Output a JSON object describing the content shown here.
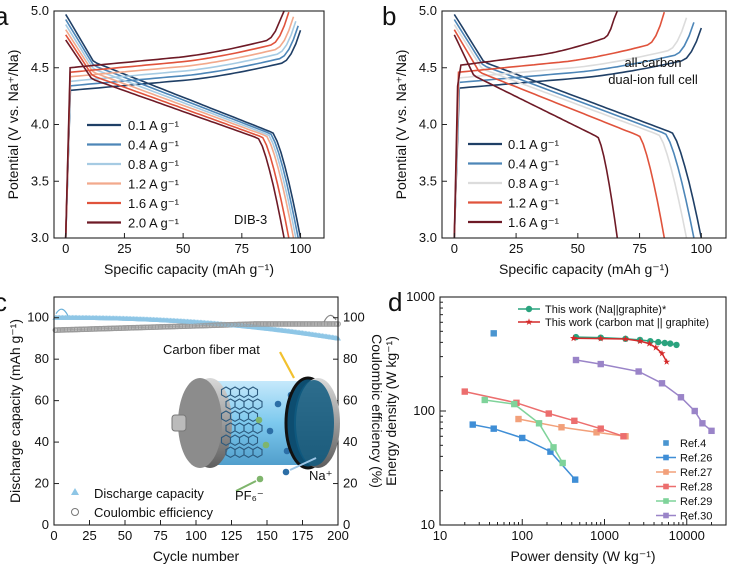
{
  "chart_data": [
    {
      "panel": "a",
      "type": "line",
      "xlabel": "Specific capacity (mAh g⁻¹)",
      "ylabel": "Potential (V vs. Na⁺/Na)",
      "xlim": [
        -5,
        110
      ],
      "ylim": [
        3.0,
        5.0
      ],
      "xticks": [
        0,
        25,
        50,
        75,
        100
      ],
      "yticks": [
        3.0,
        3.5,
        4.0,
        4.5,
        5.0
      ],
      "annotation": "DIB-3",
      "series": [
        {
          "name": "0.1 A g⁻¹",
          "color": "#1f3f66",
          "cap": 100,
          "plateau": 4.3
        },
        {
          "name": "0.4 A g⁻¹",
          "color": "#4d86b8",
          "cap": 99,
          "plateau": 4.34
        },
        {
          "name": "0.8 A g⁻¹",
          "color": "#a6cbe3",
          "cap": 98,
          "plateau": 4.38
        },
        {
          "name": "1.2 A g⁻¹",
          "color": "#f2a98c",
          "cap": 97,
          "plateau": 4.42
        },
        {
          "name": "1.6 A g⁻¹",
          "color": "#e0533c",
          "cap": 95,
          "plateau": 4.46
        },
        {
          "name": "2.0 A g⁻¹",
          "color": "#6e1a26",
          "cap": 93,
          "plateau": 4.5
        }
      ]
    },
    {
      "panel": "b",
      "type": "line",
      "xlabel": "Specific capacity (mAh g⁻¹)",
      "ylabel": "Potential (V vs. Na⁺/Na)",
      "xlim": [
        -5,
        110
      ],
      "ylim": [
        3.0,
        5.0
      ],
      "xticks": [
        0,
        25,
        50,
        75,
        100
      ],
      "yticks": [
        3.0,
        3.5,
        4.0,
        4.5,
        5.0
      ],
      "annotation": [
        "all-carbon",
        "dual-ion full cell"
      ],
      "series": [
        {
          "name": "0.1 A g⁻¹",
          "color": "#1f3f66",
          "cap": 100,
          "plateau": 4.32
        },
        {
          "name": "0.4 A g⁻¹",
          "color": "#4d86b8",
          "cap": 97,
          "plateau": 4.37
        },
        {
          "name": "0.8 A g⁻¹",
          "color": "#dcdcdc",
          "cap": 94,
          "plateau": 4.41
        },
        {
          "name": "1.2 A g⁻¹",
          "color": "#e0533c",
          "cap": 85,
          "plateau": 4.46
        },
        {
          "name": "1.6 A g⁻¹",
          "color": "#6e1a26",
          "cap": 66,
          "plateau": 4.52
        }
      ]
    },
    {
      "panel": "c",
      "type": "scatter",
      "xlabel": "Cycle number",
      "ylabel": "Discharge capacity (mAh g⁻¹)",
      "y2label": "Coulombic efficiency (%)",
      "xlim": [
        0,
        200
      ],
      "ylim": [
        0,
        110
      ],
      "y2lim": [
        0,
        110
      ],
      "xticks": [
        0,
        25,
        50,
        75,
        100,
        125,
        150,
        175,
        200
      ],
      "yticks": [
        0,
        20,
        40,
        60,
        80,
        100
      ],
      "y2ticks": [
        0,
        20,
        40,
        60,
        80,
        100
      ],
      "series": [
        {
          "name": "Discharge capacity",
          "color": "#8ec6e6",
          "start": 100,
          "end": 90
        },
        {
          "name": "Coulombic efficiency",
          "color": "#9a9a9a",
          "start": 94,
          "end": 97
        }
      ],
      "inset_labels": [
        "Carbon fiber mat",
        "Na⁺",
        "PF₆⁻"
      ]
    },
    {
      "panel": "d",
      "type": "line",
      "xscale": "log",
      "yscale": "log",
      "xlabel": "Power density (W kg⁻¹)",
      "ylabel": "Energy density (W kg⁻¹)",
      "xlim": [
        10,
        30000
      ],
      "ylim": [
        10,
        1000
      ],
      "xticks": [
        10,
        100,
        1000,
        10000
      ],
      "xticklabels": [
        "10",
        "100",
        "1000",
        "10000"
      ],
      "yticks": [
        10,
        100,
        1000
      ],
      "yticklabels": [
        "10",
        "100",
        "1000"
      ],
      "series": [
        {
          "name": "This work (Na||graphite)*",
          "color": "#2aa37e",
          "marker": "circle",
          "legend": "top",
          "points": [
            [
              450,
              445
            ],
            [
              900,
              440
            ],
            [
              1800,
              430
            ],
            [
              2700,
              420
            ],
            [
              3600,
              410
            ],
            [
              4500,
              402
            ],
            [
              5400,
              395
            ],
            [
              6300,
              390
            ],
            [
              7500,
              380
            ]
          ]
        },
        {
          "name": "This work (carbon mat || graphite)",
          "color": "#d42a2a",
          "marker": "star",
          "legend": "top",
          "points": [
            [
              420,
              435
            ],
            [
              900,
              432
            ],
            [
              1800,
              428
            ],
            [
              2700,
              410
            ],
            [
              3500,
              390
            ],
            [
              4200,
              360
            ],
            [
              5000,
              320
            ],
            [
              5700,
              270
            ]
          ]
        },
        {
          "name": "Ref.4",
          "color": "#4a95d0",
          "marker": "square",
          "legend": "bottom",
          "points": [
            [
              45,
              480
            ]
          ]
        },
        {
          "name": "Ref.26",
          "color": "#3f8ed6",
          "marker": "square",
          "legend": "bottom",
          "points": [
            [
              25,
              76
            ],
            [
              45,
              70
            ],
            [
              100,
              58
            ],
            [
              220,
              44
            ],
            [
              440,
              25
            ]
          ]
        },
        {
          "name": "Ref.27",
          "color": "#f2a07a",
          "marker": "square",
          "legend": "bottom",
          "points": [
            [
              90,
              85
            ],
            [
              300,
              72
            ],
            [
              800,
              65
            ],
            [
              1800,
              60
            ]
          ]
        },
        {
          "name": "Ref.28",
          "color": "#ec6e6e",
          "marker": "square",
          "legend": "bottom",
          "points": [
            [
              20,
              148
            ],
            [
              85,
              118
            ],
            [
              210,
              95
            ],
            [
              430,
              82
            ],
            [
              900,
              70
            ],
            [
              1700,
              60
            ]
          ]
        },
        {
          "name": "Ref.29",
          "color": "#7fd39a",
          "marker": "square",
          "legend": "bottom",
          "points": [
            [
              35,
              125
            ],
            [
              80,
              115
            ],
            [
              160,
              78
            ],
            [
              240,
              48
            ],
            [
              310,
              35
            ]
          ]
        },
        {
          "name": "Ref.30",
          "color": "#9a84c8",
          "marker": "square",
          "legend": "bottom",
          "points": [
            [
              450,
              280
            ],
            [
              900,
              258
            ],
            [
              2600,
              222
            ],
            [
              5000,
              175
            ],
            [
              8500,
              132
            ],
            [
              12500,
              100
            ],
            [
              15500,
              78
            ],
            [
              20000,
              67
            ]
          ]
        }
      ]
    }
  ]
}
